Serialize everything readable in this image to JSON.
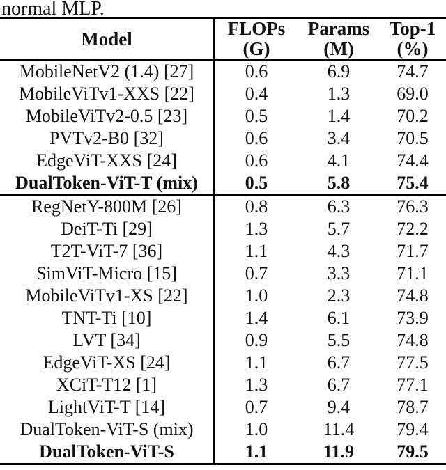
{
  "caption": "normal MLP.",
  "colors": {
    "background": "#ffffff",
    "text": "#111111",
    "rule": "#000000"
  },
  "table": {
    "columns": [
      {
        "line1": "Model",
        "line2": ""
      },
      {
        "line1": "FLOPs",
        "line2": "(G)"
      },
      {
        "line1": "Params",
        "line2": "(M)"
      },
      {
        "line1": "Top-1",
        "line2": "(%)"
      }
    ],
    "rows": [
      {
        "model": "MobileNetV2 (1.4) [27]",
        "flops": "0.6",
        "params": "6.9",
        "top1": "74.7",
        "bold": false,
        "group": 1
      },
      {
        "model": "MobileViTv1-XXS [22]",
        "flops": "0.4",
        "params": "1.3",
        "top1": "69.0",
        "bold": false,
        "group": 1
      },
      {
        "model": "MobileViTv2-0.5 [23]",
        "flops": "0.5",
        "params": "1.4",
        "top1": "70.2",
        "bold": false,
        "group": 1
      },
      {
        "model": "PVTv2-B0 [32]",
        "flops": "0.6",
        "params": "3.4",
        "top1": "70.5",
        "bold": false,
        "group": 1
      },
      {
        "model": "EdgeViT-XXS [24]",
        "flops": "0.6",
        "params": "4.1",
        "top1": "74.4",
        "bold": false,
        "group": 1
      },
      {
        "model": "DualToken-ViT-T (mix)",
        "flops": "0.5",
        "params": "5.8",
        "top1": "75.4",
        "bold": true,
        "group": 1
      },
      {
        "model": "RegNetY-800M [26]",
        "flops": "0.8",
        "params": "6.3",
        "top1": "76.3",
        "bold": false,
        "group": 2
      },
      {
        "model": "DeiT-Ti [29]",
        "flops": "1.3",
        "params": "5.7",
        "top1": "72.2",
        "bold": false,
        "group": 2
      },
      {
        "model": "T2T-ViT-7 [36]",
        "flops": "1.1",
        "params": "4.3",
        "top1": "71.7",
        "bold": false,
        "group": 2
      },
      {
        "model": "SimViT-Micro [15]",
        "flops": "0.7",
        "params": "3.3",
        "top1": "71.1",
        "bold": false,
        "group": 2
      },
      {
        "model": "MobileViTv1-XS [22]",
        "flops": "1.0",
        "params": "2.3",
        "top1": "74.8",
        "bold": false,
        "group": 2
      },
      {
        "model": "TNT-Ti [10]",
        "flops": "1.4",
        "params": "6.1",
        "top1": "73.9",
        "bold": false,
        "group": 2
      },
      {
        "model": "LVT [34]",
        "flops": "0.9",
        "params": "5.5",
        "top1": "74.8",
        "bold": false,
        "group": 2
      },
      {
        "model": "EdgeViT-XS [24]",
        "flops": "1.1",
        "params": "6.7",
        "top1": "77.5",
        "bold": false,
        "group": 2
      },
      {
        "model": "XCiT-T12 [1]",
        "flops": "1.3",
        "params": "6.7",
        "top1": "77.1",
        "bold": false,
        "group": 2
      },
      {
        "model": "LightViT-T [14]",
        "flops": "0.7",
        "params": "9.4",
        "top1": "78.7",
        "bold": false,
        "group": 2
      },
      {
        "model": "DualToken-ViT-S (mix)",
        "flops": "1.0",
        "params": "11.4",
        "top1": "79.4",
        "bold": false,
        "group": 2
      },
      {
        "model": "DualToken-ViT-S",
        "flops": "1.1",
        "params": "11.9",
        "top1": "79.5",
        "bold": true,
        "group": 2
      }
    ]
  }
}
